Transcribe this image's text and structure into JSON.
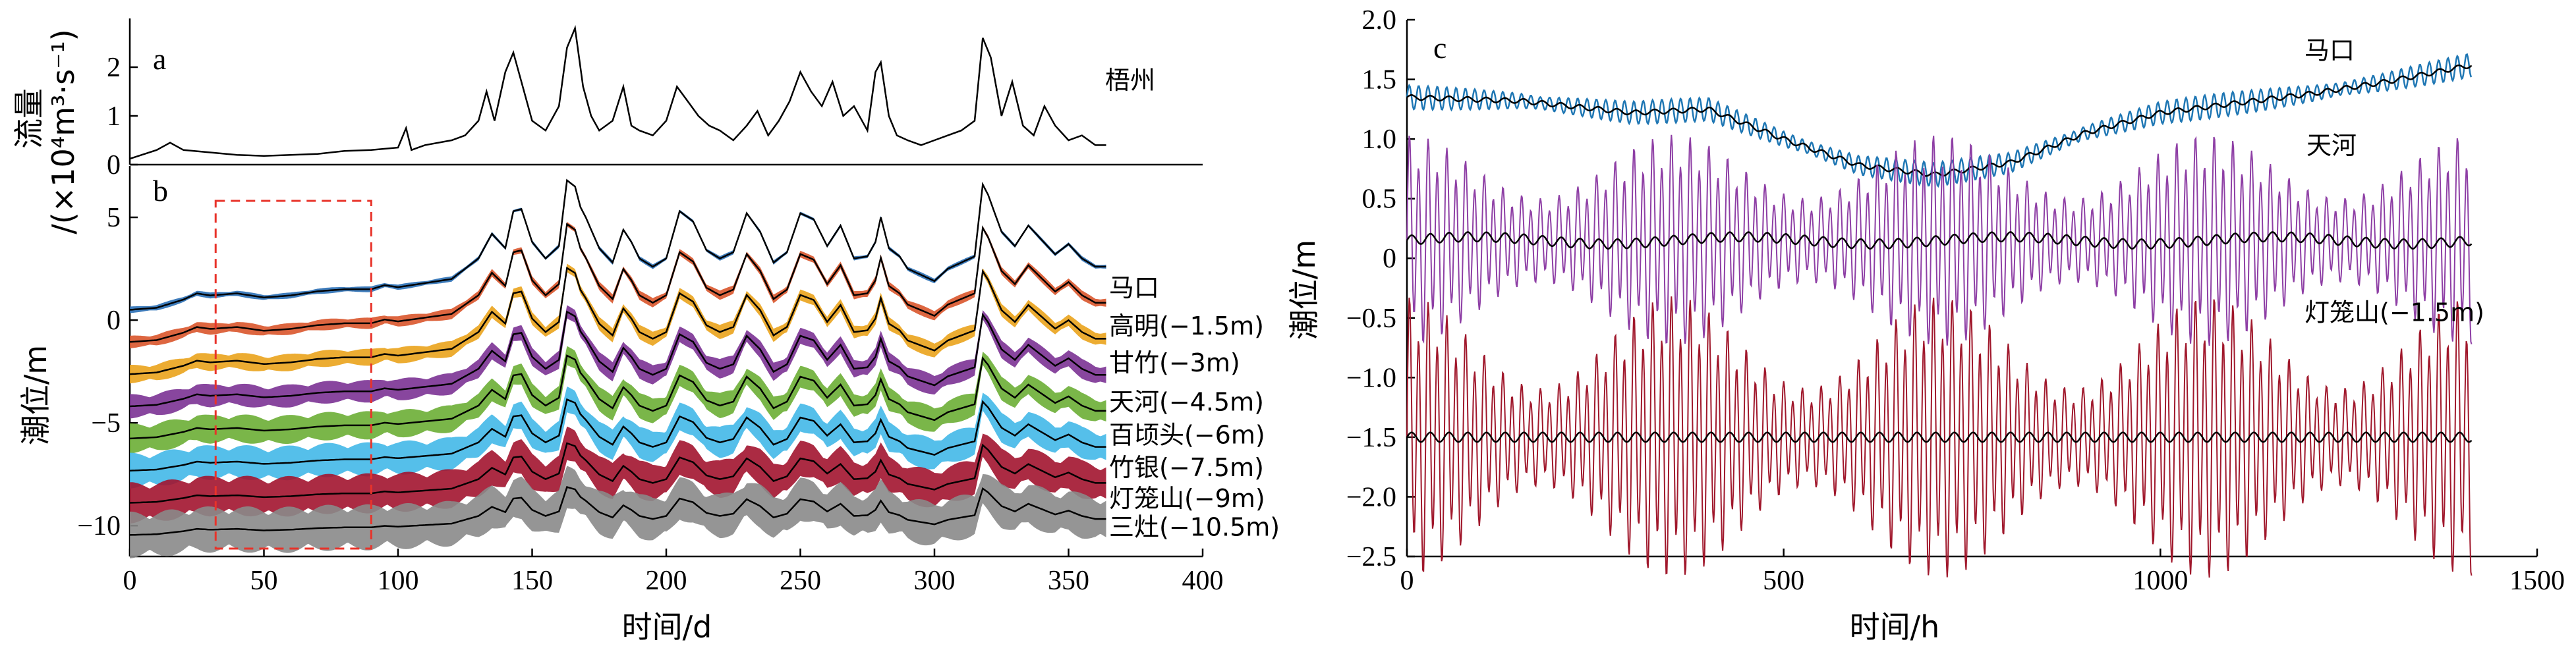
{
  "chart_data": [
    {
      "panel": "a",
      "type": "line",
      "ylabel": "流量/(×10⁴m³·s⁻¹)",
      "yticks": [
        "0",
        "1",
        "2"
      ],
      "ylim": [
        0,
        3
      ],
      "xlim": [
        0,
        400
      ],
      "series": [
        {
          "name": "梧州",
          "color": "#000000",
          "x": [
            0,
            10,
            15,
            20,
            30,
            40,
            50,
            60,
            70,
            80,
            90,
            100,
            103,
            105,
            110,
            120,
            125,
            130,
            133,
            136,
            140,
            143,
            147,
            150,
            155,
            160,
            163,
            166,
            169,
            172,
            175,
            180,
            184,
            187,
            190,
            195,
            200,
            204,
            208,
            212,
            216,
            220,
            225,
            230,
            234,
            238,
            242,
            246,
            250,
            254,
            258,
            262,
            266,
            270,
            275,
            278,
            280,
            283,
            286,
            290,
            295,
            300,
            305,
            310,
            315,
            318,
            321,
            325,
            329,
            333,
            337,
            341,
            345,
            350,
            355,
            360,
            364
          ],
          "values": [
            0.12,
            0.3,
            0.45,
            0.3,
            0.25,
            0.2,
            0.18,
            0.2,
            0.22,
            0.28,
            0.3,
            0.35,
            0.75,
            0.3,
            0.4,
            0.5,
            0.6,
            0.9,
            1.5,
            0.9,
            1.9,
            2.3,
            1.5,
            0.9,
            0.7,
            1.2,
            2.4,
            2.8,
            1.6,
            1.0,
            0.7,
            0.9,
            1.6,
            0.8,
            0.7,
            0.6,
            0.9,
            1.6,
            1.3,
            1.0,
            0.8,
            0.7,
            0.5,
            0.8,
            1.1,
            0.6,
            0.9,
            1.3,
            1.9,
            1.5,
            1.2,
            1.7,
            1.0,
            1.2,
            0.7,
            1.9,
            2.1,
            1.0,
            0.6,
            0.5,
            0.4,
            0.5,
            0.6,
            0.7,
            0.9,
            2.6,
            2.2,
            1.0,
            1.7,
            0.8,
            0.6,
            1.2,
            0.8,
            0.5,
            0.6,
            0.4,
            0.4
          ]
        }
      ]
    },
    {
      "panel": "b",
      "type": "line",
      "xlabel": "时间/d",
      "ylabel": "潮位/m",
      "xticks": [
        "0",
        "50",
        "100",
        "150",
        "200",
        "250",
        "300",
        "350",
        "400"
      ],
      "yticks": [
        "−10",
        "−5",
        "0",
        "5"
      ],
      "xlim": [
        0,
        400
      ],
      "ylim": [
        -11.5,
        7.5
      ],
      "highlight_box_x": [
        32,
        90
      ],
      "series": [
        {
          "name": "马口",
          "offset": 0,
          "color": "#2a6fb5"
        },
        {
          "name": "高明(−1.5m)",
          "offset": -1.5,
          "color": "#d9552b"
        },
        {
          "name": "甘竹(−3m)",
          "offset": -3,
          "color": "#eaa31c"
        },
        {
          "name": "天河(−4.5m)",
          "offset": -4.5,
          "color": "#7b3294"
        },
        {
          "name": "百顷头(−6m)",
          "offset": -6,
          "color": "#6cae35"
        },
        {
          "name": "竹银(−7.5m)",
          "offset": -7.5,
          "color": "#42b8e8"
        },
        {
          "name": "灯笼山(−9m)",
          "offset": -9,
          "color": "#a2142f"
        },
        {
          "name": "三灶(−10.5m)",
          "offset": -10.5,
          "color": "#8a8a8a"
        }
      ],
      "base_trend": {
        "x": [
          0,
          10,
          20,
          25,
          30,
          40,
          50,
          60,
          70,
          80,
          90,
          95,
          100,
          110,
          120,
          130,
          135,
          140,
          143,
          146,
          150,
          155,
          160,
          163,
          166,
          168,
          170,
          175,
          180,
          184,
          187,
          190,
          195,
          200,
          205,
          210,
          215,
          220,
          225,
          230,
          235,
          240,
          245,
          250,
          255,
          260,
          265,
          270,
          275,
          278,
          280,
          283,
          287,
          290,
          295,
          300,
          305,
          310,
          315,
          318,
          320,
          325,
          330,
          335,
          340,
          345,
          350,
          355,
          360,
          364
        ],
        "values": [
          0.5,
          0.6,
          1.0,
          1.3,
          1.2,
          1.3,
          1.1,
          1.2,
          1.4,
          1.5,
          1.5,
          1.7,
          1.6,
          1.8,
          2.0,
          3.0,
          4.2,
          3.5,
          5.3,
          5.4,
          3.8,
          3.0,
          3.6,
          6.8,
          6.5,
          5.5,
          5.0,
          3.5,
          2.8,
          4.4,
          3.8,
          3.0,
          2.6,
          3.0,
          5.3,
          4.8,
          3.4,
          3.0,
          3.3,
          5.2,
          4.3,
          2.8,
          3.3,
          5.2,
          4.9,
          3.6,
          4.6,
          3.0,
          3.1,
          3.8,
          5.0,
          3.5,
          3.1,
          2.5,
          2.2,
          1.9,
          2.5,
          2.8,
          3.1,
          6.6,
          6.1,
          4.3,
          3.6,
          4.6,
          3.9,
          3.2,
          3.7,
          3.0,
          2.6,
          2.6
        ]
      }
    },
    {
      "panel": "c",
      "type": "line",
      "xlabel": "时间/h",
      "ylabel": "潮位/m",
      "xticks": [
        "0",
        "500",
        "1000",
        "1500"
      ],
      "yticks": [
        "−2.5",
        "−2.0",
        "−1.5",
        "−1.0",
        "−0.5",
        "0",
        "0.5",
        "1.0",
        "1.5",
        "2.0"
      ],
      "xlim": [
        0,
        1500
      ],
      "ylim": [
        -2.5,
        2.0
      ],
      "series": [
        {
          "name": "马口",
          "color": "#1f77b4",
          "trend_x": [
            0,
            150,
            300,
            400,
            500,
            600,
            700,
            800,
            900,
            1000,
            1100,
            1200,
            1300,
            1413
          ],
          "trend_y": [
            1.35,
            1.32,
            1.22,
            1.25,
            1.0,
            0.78,
            0.7,
            0.8,
            1.05,
            1.22,
            1.3,
            1.38,
            1.48,
            1.62
          ],
          "tidal_amplitude": 0.1
        },
        {
          "name": "天河",
          "color": "#8e3fa5",
          "mean": 0.15,
          "tidal_amplitude_min": 0.3,
          "tidal_amplitude_max": 0.75
        },
        {
          "name": "灯笼山(−1.5m)",
          "color": "#a0182c",
          "mean": -1.5,
          "tidal_amplitude_min": 0.35,
          "tidal_amplitude_max": 1.0
        }
      ]
    }
  ],
  "panel_labels": {
    "a": "a",
    "b": "b",
    "c": "c"
  },
  "station_a": "梧州",
  "ylabel_a_line1": "流量",
  "ylabel_a_line2": "/(×10⁴m³·s⁻¹)",
  "ylabel_b": "潮位/m",
  "xlabel_b": "时间/d",
  "ylabel_c": "潮位/m",
  "xlabel_c": "时间/h",
  "labels_b": [
    "马口",
    "高明(−1.5m)",
    "甘竹(−3m)",
    "天河(−4.5m)",
    "百顷头(−6m)",
    "竹银(−7.5m)",
    "灯笼山(−9m)",
    "三灶(−10.5m)"
  ],
  "labels_c": [
    "马口",
    "天河",
    "灯笼山(−1.5m)"
  ]
}
